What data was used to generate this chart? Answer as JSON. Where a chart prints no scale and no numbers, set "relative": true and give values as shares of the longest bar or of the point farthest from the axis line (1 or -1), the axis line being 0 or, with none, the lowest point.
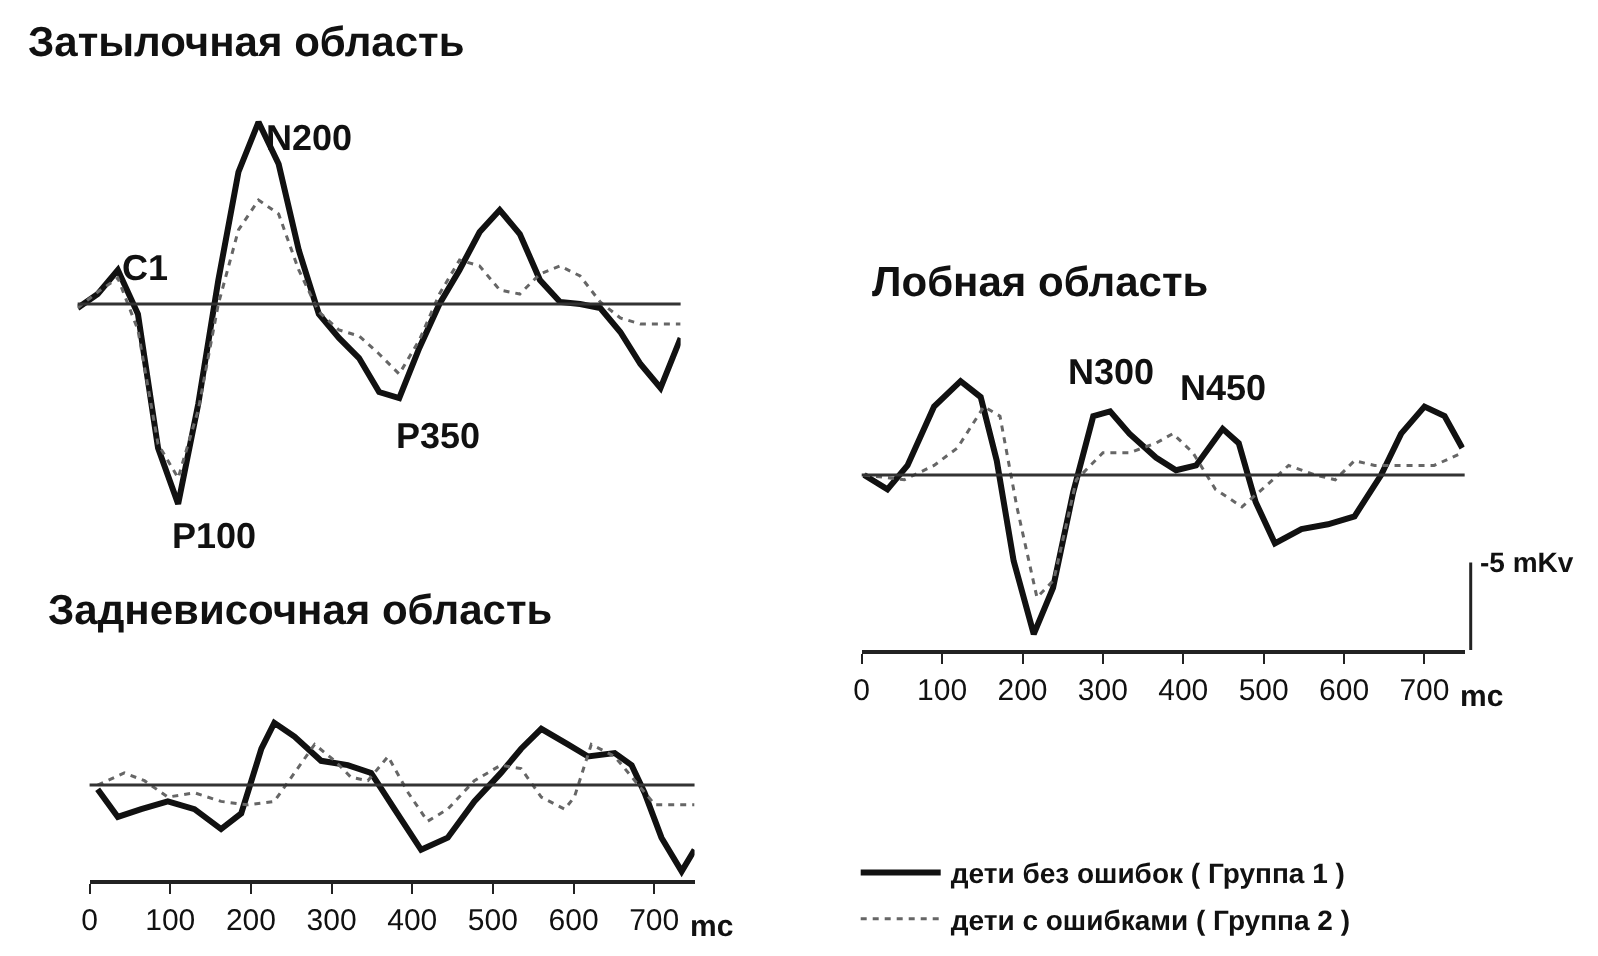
{
  "chart_data": [
    {
      "type": "line",
      "title": "Затылочная область",
      "relative": true,
      "categories": [
        null,
        null,
        null,
        null,
        null,
        null,
        null,
        null,
        null,
        null,
        null,
        null,
        null,
        null,
        null,
        null,
        null,
        null,
        null,
        null,
        null,
        null,
        null,
        null,
        null,
        null,
        null,
        null,
        null,
        null,
        null
      ],
      "legend": "bottom right",
      "marker": "none",
      "annotations": [
        "C1",
        "N200",
        "P100",
        "P350"
      ],
      "series": [
        {
          "name": "дети без ошибок ( Группа 1 )",
          "color": "#111111",
          "line_style": "solid",
          "values": [
            -0.02,
            0.05,
            0.17,
            -0.05,
            -0.72,
            -1.0,
            -0.5,
            0.12,
            0.66,
            0.91,
            0.7,
            0.27,
            -0.05,
            -0.17,
            -0.27,
            -0.44,
            -0.47,
            -0.22,
            0,
            0.17,
            0.36,
            0.47,
            0.35,
            0.12,
            0.01,
            0,
            -0.02,
            -0.14,
            -0.3,
            -0.42,
            -0.17
          ]
        },
        {
          "name": "дети с ошибками ( Группа 2 )",
          "color": "#666666",
          "line_style": "dotted",
          "values": [
            -0.02,
            0.06,
            0.13,
            -0.13,
            -0.7,
            -0.87,
            -0.53,
            0,
            0.37,
            0.52,
            0.45,
            0.17,
            -0.04,
            -0.13,
            -0.16,
            -0.25,
            -0.35,
            -0.18,
            0.05,
            0.22,
            0.19,
            0.07,
            0.05,
            0.15,
            0.19,
            0.14,
            0.01,
            -0.07,
            -0.1,
            -0.1,
            -0.1
          ]
        }
      ]
    },
    {
      "type": "line",
      "title": "Задневисочная область",
      "relative": true,
      "xlim": [
        0,
        750
      ],
      "xticks": [
        {
          "value": 0,
          "label": "0"
        },
        100,
        200,
        300,
        400,
        500,
        600,
        700
      ],
      "xlabel": "mc",
      "marker": "none",
      "series": [
        {
          "color": "#111111",
          "line_style": "solid",
          "x": [
            10,
            35,
            64,
            97,
            130,
            163,
            188,
            213,
            229,
            254,
            287,
            320,
            349,
            378,
            411,
            444,
            477,
            510,
            535,
            560,
            593,
            618,
            651,
            672,
            688,
            709,
            734,
            750
          ],
          "values": [
            -0.05,
            -0.37,
            -0.28,
            -0.19,
            -0.28,
            -0.51,
            -0.33,
            0.42,
            0.72,
            0.56,
            0.28,
            0.23,
            0.14,
            -0.28,
            -0.75,
            -0.61,
            -0.19,
            0.14,
            0.42,
            0.65,
            0.47,
            0.33,
            0.37,
            0.23,
            -0.09,
            -0.61,
            -1.0,
            -0.75
          ]
        },
        {
          "color": "#666666",
          "line_style": "dotted",
          "x": [
            10,
            43,
            68,
            97,
            130,
            163,
            196,
            229,
            254,
            279,
            304,
            324,
            345,
            370,
            395,
            419,
            444,
            477,
            510,
            535,
            560,
            589,
            601,
            622,
            651,
            676,
            701,
            750
          ],
          "values": [
            0,
            0.14,
            0.05,
            -0.14,
            -0.09,
            -0.19,
            -0.23,
            -0.19,
            0.14,
            0.47,
            0.28,
            0.09,
            0.05,
            0.33,
            -0.09,
            -0.42,
            -0.28,
            0.05,
            0.23,
            0.19,
            -0.14,
            -0.28,
            -0.14,
            0.47,
            0.33,
            0.05,
            -0.23,
            -0.23
          ]
        }
      ]
    },
    {
      "type": "line",
      "title": "Лобная область",
      "relative": true,
      "xlim": [
        0,
        750
      ],
      "xticks": [
        {
          "value": 0,
          "label": "0"
        },
        100,
        200,
        300,
        400,
        500,
        600,
        700
      ],
      "xlabel": "mc",
      "marker": "none",
      "annotations": [
        {
          "text": "N300",
          "x": 309,
          "y": 0.4
        },
        {
          "text": "N450",
          "x": 449,
          "y": 0.29
        },
        "-5 mKv"
      ],
      "series": [
        {
          "color": "#111111",
          "line_style": "solid",
          "x": [
            3,
            32,
            57,
            90,
            123,
            148,
            168,
            189,
            214,
            238,
            263,
            288,
            309,
            333,
            366,
            391,
            416,
            449,
            469,
            490,
            514,
            547,
            580,
            613,
            646,
            671,
            700,
            725,
            747
          ],
          "values": [
            0,
            -0.09,
            0.06,
            0.43,
            0.59,
            0.49,
            0.09,
            -0.54,
            -1.0,
            -0.71,
            -0.11,
            0.37,
            0.4,
            0.26,
            0.11,
            0.03,
            0.06,
            0.29,
            0.2,
            -0.17,
            -0.43,
            -0.34,
            -0.31,
            -0.26,
            0,
            0.26,
            0.43,
            0.37,
            0.17
          ]
        },
        {
          "color": "#666666",
          "line_style": "dotted",
          "x": [
            3,
            53,
            90,
            119,
            152,
            172,
            193,
            218,
            239,
            267,
            300,
            333,
            366,
            387,
            412,
            440,
            473,
            498,
            531,
            564,
            589,
            613,
            638,
            671,
            712,
            747
          ],
          "values": [
            0,
            -0.03,
            0.06,
            0.17,
            0.43,
            0.37,
            -0.2,
            -0.77,
            -0.66,
            -0.03,
            0.14,
            0.14,
            0.2,
            0.26,
            0.14,
            -0.09,
            -0.2,
            -0.09,
            0.06,
            0,
            -0.03,
            0.09,
            0.06,
            0.06,
            0.06,
            0.14
          ]
        }
      ]
    }
  ]
}
